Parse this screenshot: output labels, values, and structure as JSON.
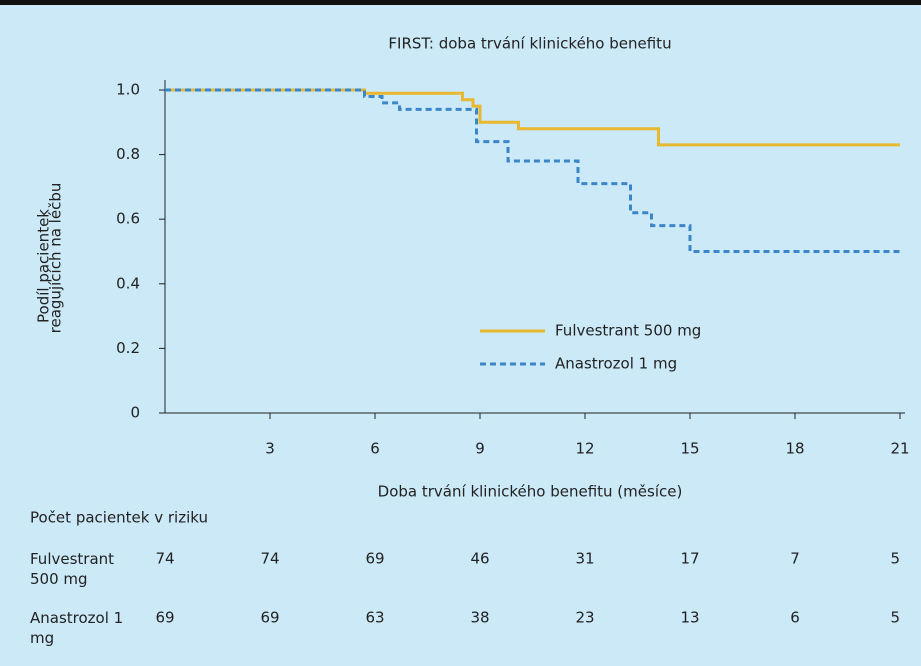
{
  "chart_data": {
    "type": "line",
    "step": "post",
    "title": "FIRST: doba trvání klinického benefitu",
    "xlabel": "Doba trvání klinického benefitu (měsíce)",
    "ylabel": [
      "Podíl pacientek",
      "reagujících na léčbu"
    ],
    "xlim": [
      0,
      21
    ],
    "ylim": [
      0,
      1
    ],
    "xticks": [
      3,
      6,
      9,
      12,
      15,
      18,
      21
    ],
    "yticks": [
      0,
      {
        "value": 0.2,
        "label": "0.2"
      },
      {
        "value": 0.4,
        "label": "0.4"
      },
      {
        "value": 0.6,
        "label": "0.6"
      },
      {
        "value": 0.8,
        "label": "0.8"
      },
      {
        "value": 1,
        "label": "1.0"
      }
    ],
    "legend": "center",
    "series": [
      {
        "name": "Fulvestrant 500 mg",
        "color": "#e8b830",
        "dash": false,
        "x": [
          0,
          5.7,
          8.5,
          8.8,
          9.0,
          10.1,
          14.1,
          21
        ],
        "values": [
          1.0,
          0.99,
          0.97,
          0.95,
          0.9,
          0.88,
          0.83,
          0.83
        ]
      },
      {
        "name": "Anastrozol 1 mg",
        "color": "#3a86c8",
        "dash": true,
        "x": [
          0,
          5.7,
          6.2,
          6.7,
          8.9,
          9.8,
          11.8,
          13.3,
          13.9,
          15.0,
          21
        ],
        "values": [
          1.0,
          0.98,
          0.96,
          0.94,
          0.84,
          0.78,
          0.71,
          0.62,
          0.58,
          0.5,
          0.5
        ]
      }
    ],
    "risk_table": {
      "title": "Počet pacientek v riziku",
      "times": [
        0,
        3,
        6,
        9,
        12,
        15,
        18,
        21
      ],
      "rows": [
        {
          "label": "Fulvestrant 500 mg",
          "values": [
            74,
            74,
            69,
            46,
            31,
            17,
            7,
            5
          ]
        },
        {
          "label": "Anastrozol 1 mg",
          "values": [
            69,
            69,
            63,
            38,
            23,
            13,
            6,
            5
          ]
        }
      ]
    }
  }
}
